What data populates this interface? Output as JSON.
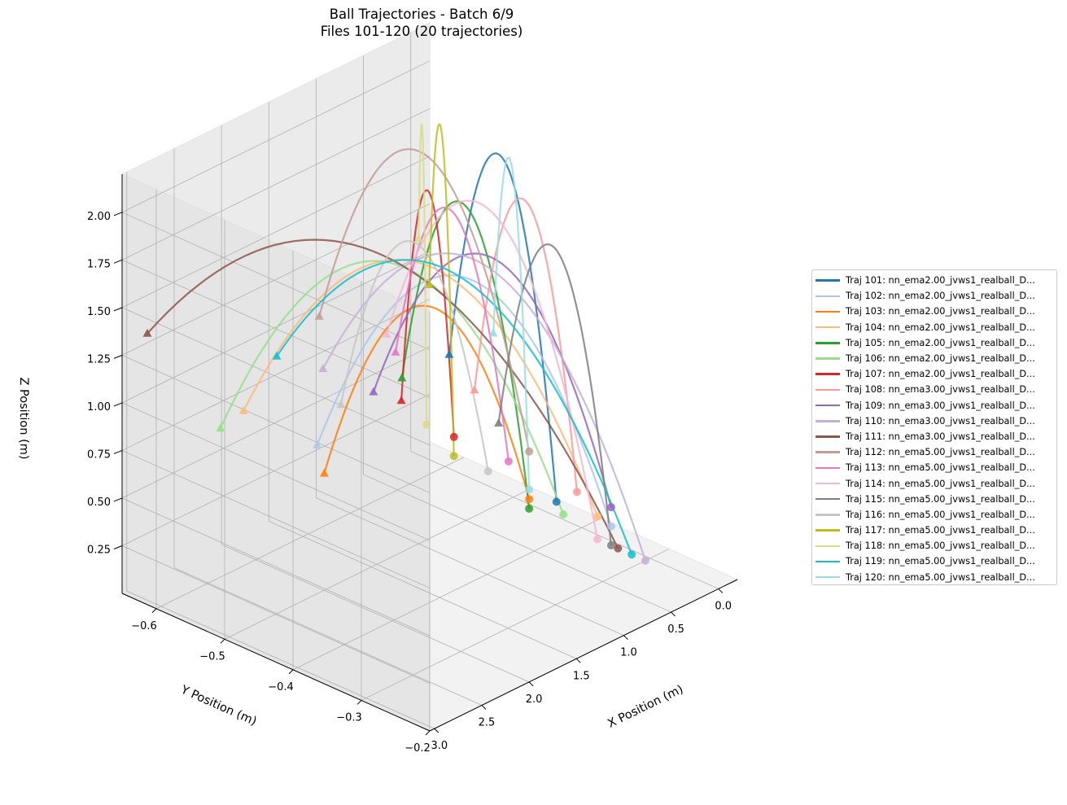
{
  "chart_data": {
    "type": "line3d",
    "title": "Ball Trajectories - Batch 6/9",
    "subtitle": "Files 101-120 (20 trajectories)",
    "xlabel": "X Position (m)",
    "ylabel": "Y Position (m)",
    "zlabel": "Z Position (m)",
    "xlim": [
      -0.2,
      3.05
    ],
    "ylim": [
      -0.65,
      -0.2
    ],
    "zlim": [
      0.0,
      2.2
    ],
    "xticks": [
      "0.0",
      "0.5",
      "1.0",
      "1.5",
      "2.0",
      "2.5",
      "3.0"
    ],
    "yticks": [
      "−0.6",
      "−0.5",
      "−0.4",
      "−0.3",
      "−0.2"
    ],
    "zticks": [
      "0.25",
      "0.50",
      "0.75",
      "1.00",
      "1.25",
      "1.50",
      "1.75",
      "2.00"
    ],
    "grid": true,
    "legend_position": "right",
    "markers": {
      "start": "circle",
      "end": "triangle"
    },
    "series": [
      {
        "name": "Traj 101: nn_ema2.00_jvws1_realball_D...",
        "color": "#1f77b4",
        "start": [
          0.05,
          -0.43,
          0.1
        ],
        "end": [
          1.4,
          -0.4,
          1.25
        ],
        "peak_z": 2.15
      },
      {
        "name": "Traj 102: nn_ema2.00_jvws1_realball_D...",
        "color": "#aec7e8",
        "start": [
          0.05,
          -0.35,
          0.1
        ],
        "end": [
          2.65,
          -0.42,
          1.05
        ],
        "peak_z": 1.72
      },
      {
        "name": "Traj 103: nn_ema2.00_jvws1_realball_D...",
        "color": "#ff7f0e",
        "start": [
          0.05,
          -0.47,
          0.05
        ],
        "end": [
          2.72,
          -0.4,
          0.95
        ],
        "peak_z": 1.5
      },
      {
        "name": "Traj 104: nn_ema2.00_jvws1_realball_D...",
        "color": "#ffbb78",
        "start": [
          0.05,
          -0.37,
          0.12
        ],
        "end": [
          2.85,
          -0.5,
          1.15
        ],
        "peak_z": 1.75
      },
      {
        "name": "Traj 105: nn_ema2.00_jvws1_realball_D...",
        "color": "#2ca02c",
        "start": [
          0.05,
          -0.47,
          0.0
        ],
        "end": [
          1.9,
          -0.4,
          1.25
        ],
        "peak_z": 1.95
      },
      {
        "name": "Traj 106: nn_ema2.00_jvws1_realball_D...",
        "color": "#98df8a",
        "start": [
          0.05,
          -0.42,
          0.05
        ],
        "end": [
          2.95,
          -0.52,
          1.05
        ],
        "peak_z": 1.7
      },
      {
        "name": "Traj 107: nn_ema2.00_jvws1_realball_D...",
        "color": "#d62728",
        "start": [
          0.05,
          -0.58,
          0.2
        ],
        "end": [
          2.05,
          -0.38,
          1.2
        ],
        "peak_z": 1.95
      },
      {
        "name": "Traj 108: nn_ema3.00_jvws1_realball_D...",
        "color": "#ff9896",
        "start": [
          0.05,
          -0.4,
          0.2
        ],
        "end": [
          1.35,
          -0.37,
          1.1
        ],
        "peak_z": 1.95
      },
      {
        "name": "Traj 109: nn_ema3.00_jvws1_realball_D...",
        "color": "#9467bd",
        "start": [
          0.05,
          -0.35,
          0.2
        ],
        "end": [
          2.2,
          -0.4,
          1.25
        ],
        "peak_z": 1.8
      },
      {
        "name": "Traj 110: nn_ema3.00_jvws1_realball_D...",
        "color": "#c5b0d5",
        "start": [
          0.05,
          -0.3,
          0.0
        ],
        "end": [
          2.3,
          -0.46,
          1.3
        ],
        "peak_z": 1.8
      },
      {
        "name": "Traj 111: nn_ema3.00_jvws1_realball_D...",
        "color": "#8c564b",
        "start": [
          0.05,
          -0.34,
          0.0
        ],
        "end": [
          3.0,
          -0.62,
          1.4
        ],
        "peak_z": 1.8
      },
      {
        "name": "Traj 112: nn_ema5.00_jvws1_realball_D...",
        "color": "#c49c94",
        "start": [
          0.05,
          -0.47,
          0.3
        ],
        "end": [
          2.05,
          -0.5,
          1.45
        ],
        "peak_z": 2.15
      },
      {
        "name": "Traj 113: nn_ema5.00_jvws1_realball_D...",
        "color": "#e377c2",
        "start": [
          0.05,
          -0.5,
          0.2
        ],
        "end": [
          1.75,
          -0.43,
          1.3
        ],
        "peak_z": 1.85
      },
      {
        "name": "Traj 114: nn_ema5.00_jvws1_realball_D...",
        "color": "#f7b6d2",
        "start": [
          0.05,
          -0.37,
          0.0
        ],
        "end": [
          1.7,
          -0.45,
          1.35
        ],
        "peak_z": 1.95
      },
      {
        "name": "Traj 115: nn_ema5.00_jvws1_realball_D...",
        "color": "#7f7f7f",
        "start": [
          0.05,
          -0.35,
          0.0
        ],
        "end": [
          1.6,
          -0.3,
          1.1
        ],
        "peak_z": 1.85
      },
      {
        "name": "Traj 116: nn_ema5.00_jvws1_realball_D...",
        "color": "#c7c7c7",
        "start": [
          0.05,
          -0.53,
          0.1
        ],
        "end": [
          2.4,
          -0.42,
          1.2
        ],
        "peak_z": 1.75
      },
      {
        "name": "Traj 117: nn_ema5.00_jvws1_realball_D...",
        "color": "#bcbd22",
        "start": [
          0.05,
          -0.58,
          0.1
        ],
        "end": [
          1.25,
          -0.45,
          1.5
        ],
        "peak_z": 2.15
      },
      {
        "name": "Traj 118: nn_ema5.00_jvws1_realball_D...",
        "color": "#dbdb8d",
        "start": [
          0.05,
          -0.62,
          0.2
        ],
        "end": [
          1.0,
          -0.5,
          1.6
        ],
        "peak_z": 2.05
      },
      {
        "name": "Traj 119: nn_ema5.00_jvws1_realball_D...",
        "color": "#17becf",
        "start": [
          0.05,
          -0.32,
          0.0
        ],
        "end": [
          2.5,
          -0.5,
          1.35
        ],
        "peak_z": 1.75
      },
      {
        "name": "Traj 120: nn_ema5.00_jvws1_realball_D...",
        "color": "#9edae5",
        "start": [
          0.05,
          -0.47,
          0.1
        ],
        "end": [
          1.15,
          -0.37,
          1.35
        ],
        "peak_z": 2.1
      }
    ]
  }
}
